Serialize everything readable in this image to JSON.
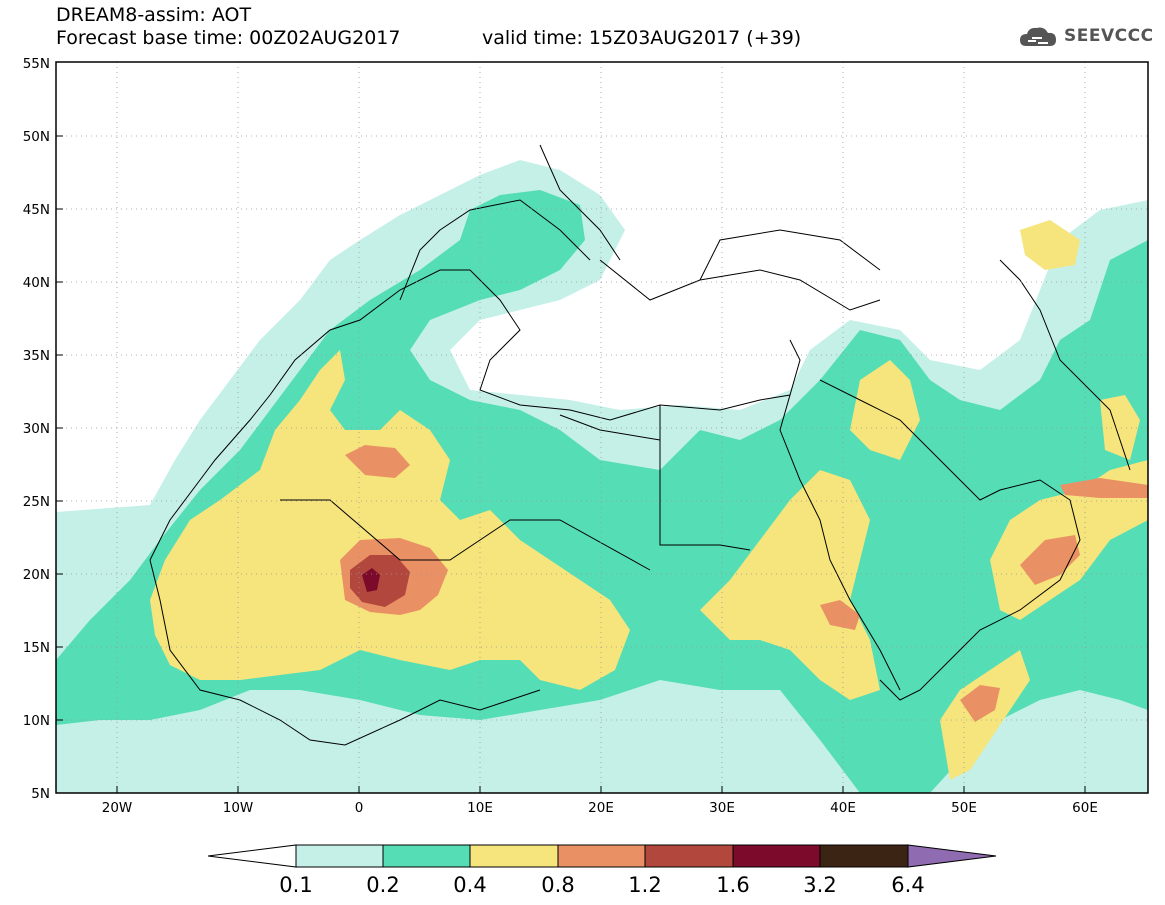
{
  "header": {
    "title": "DREAM8-assim: AOT",
    "base_time": "Forecast base time: 00Z02AUG2017",
    "valid_time": "valid time: 15Z03AUG2017 (+39)",
    "logo_text": "SEEVCCC"
  },
  "map": {
    "extent": {
      "lon": [
        -25,
        65
      ],
      "lat": [
        5,
        55
      ]
    },
    "lat_labels": [
      "55N",
      "50N",
      "45N",
      "40N",
      "35N",
      "30N",
      "25N",
      "20N",
      "15N",
      "10N",
      "5N"
    ],
    "lon_labels": [
      "20W",
      "10W",
      "0",
      "10E",
      "20E",
      "30E",
      "40E",
      "50E",
      "60E"
    ],
    "grid": true
  },
  "colorbar": {
    "levels": [
      "0.1",
      "0.2",
      "0.4",
      "0.8",
      "1.2",
      "1.6",
      "3.2",
      "6.4"
    ],
    "colors": [
      "#ffffff",
      "#c4f0e8",
      "#55ddb5",
      "#f6e57c",
      "#e99165",
      "#b2473d",
      "#7c0a2a",
      "#3c2415",
      "#8f6bb1"
    ]
  },
  "colors": {
    "c01": "#c4f0e8",
    "c02": "#55ddb5",
    "c04": "#f6e57c",
    "c08": "#e99165",
    "c12": "#b2473d",
    "c16": "#7c0a2a",
    "border": "#000000"
  }
}
